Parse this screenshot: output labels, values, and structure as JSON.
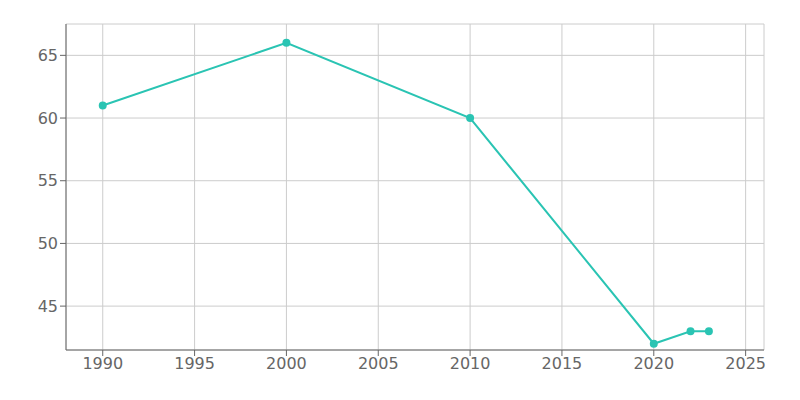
{
  "chart_data": {
    "type": "line",
    "x": [
      1990,
      2000,
      2010,
      2020,
      2022,
      2023
    ],
    "values": [
      61,
      66,
      60,
      42,
      43,
      43
    ],
    "color": "#2ac4b3",
    "marker": "circle",
    "xlim": [
      1988,
      2026
    ],
    "ylim": [
      41.5,
      67.5
    ],
    "xticks": [
      1990,
      1995,
      2000,
      2005,
      2010,
      2015,
      2020,
      2025
    ],
    "yticks": [
      45,
      50,
      55,
      60,
      65
    ],
    "grid": true
  }
}
